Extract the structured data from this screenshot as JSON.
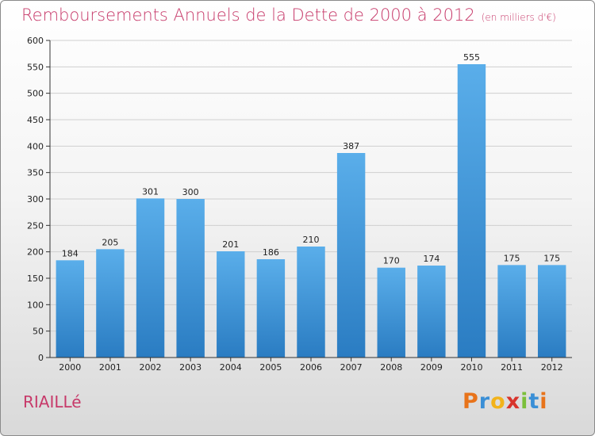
{
  "header": {
    "title": "Remboursements Annuels de la Dette de 2000 à 2012",
    "unit": "(en milliers d'€)"
  },
  "footer": {
    "commune": "RIAILLé",
    "logo_letters": [
      "P",
      "r",
      "o",
      "x",
      "i",
      "t",
      "i"
    ],
    "logo_colors": [
      "#e8731a",
      "#3a8fd6",
      "#f2b31b",
      "#d8342c",
      "#7bbf3a",
      "#3a8fd6",
      "#e8731a"
    ]
  },
  "colors": {
    "bar_top": "#5aaeea",
    "bar_bottom": "#2a7cc2",
    "grid": "#cfcfcf"
  },
  "chart_data": {
    "type": "bar",
    "title": "Remboursements Annuels de la Dette de 2000 à 2012",
    "subtitle": "(en milliers d'€)",
    "categories": [
      "2000",
      "2001",
      "2002",
      "2003",
      "2004",
      "2005",
      "2006",
      "2007",
      "2008",
      "2009",
      "2010",
      "2011",
      "2012"
    ],
    "values": [
      184,
      205,
      301,
      300,
      201,
      186,
      210,
      387,
      170,
      174,
      555,
      175,
      175
    ],
    "ylim": [
      0,
      600
    ],
    "yticks": [
      0,
      50,
      100,
      150,
      200,
      250,
      300,
      350,
      400,
      450,
      500,
      550,
      600
    ],
    "grid": true,
    "data_labels": true
  }
}
